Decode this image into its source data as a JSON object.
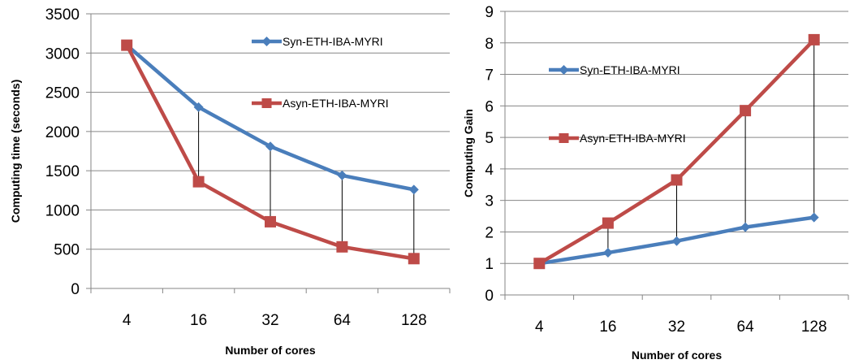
{
  "chart_data": [
    {
      "type": "line",
      "categories": [
        "4",
        "16",
        "32",
        "64",
        "128"
      ],
      "xlabel": "Number of cores",
      "ylabel": "Computing time (seconds)",
      "ylim": [
        0,
        3500
      ],
      "yticks": [
        0,
        500,
        1000,
        1500,
        2000,
        2500,
        3000,
        3500
      ],
      "grid": true,
      "legend_position": "right",
      "series": [
        {
          "name": "Syn-ETH-IBA-MYRI",
          "color": "#4a7ebb",
          "marker": "diamond",
          "values": [
            3100,
            2310,
            1810,
            1440,
            1260
          ]
        },
        {
          "name": "Asyn-ETH-IBA-MYRI",
          "color": "#be4b48",
          "marker": "square",
          "values": [
            3100,
            1360,
            850,
            530,
            380
          ]
        }
      ],
      "connectors": true
    },
    {
      "type": "line",
      "categories": [
        "4",
        "16",
        "32",
        "64",
        "128"
      ],
      "xlabel": "Number of cores",
      "ylabel": "Computing Gain",
      "ylim": [
        0,
        9
      ],
      "yticks": [
        0,
        1,
        2,
        3,
        4,
        5,
        6,
        7,
        8,
        9
      ],
      "grid": true,
      "legend_position": "left",
      "series": [
        {
          "name": "Syn-ETH-IBA-MYRI",
          "color": "#4a7ebb",
          "marker": "diamond",
          "values": [
            1.0,
            1.34,
            1.71,
            2.15,
            2.46
          ]
        },
        {
          "name": "Asyn-ETH-IBA-MYRI",
          "color": "#be4b48",
          "marker": "square",
          "values": [
            1.0,
            2.28,
            3.65,
            5.85,
            8.1
          ]
        }
      ],
      "connectors": true
    }
  ]
}
